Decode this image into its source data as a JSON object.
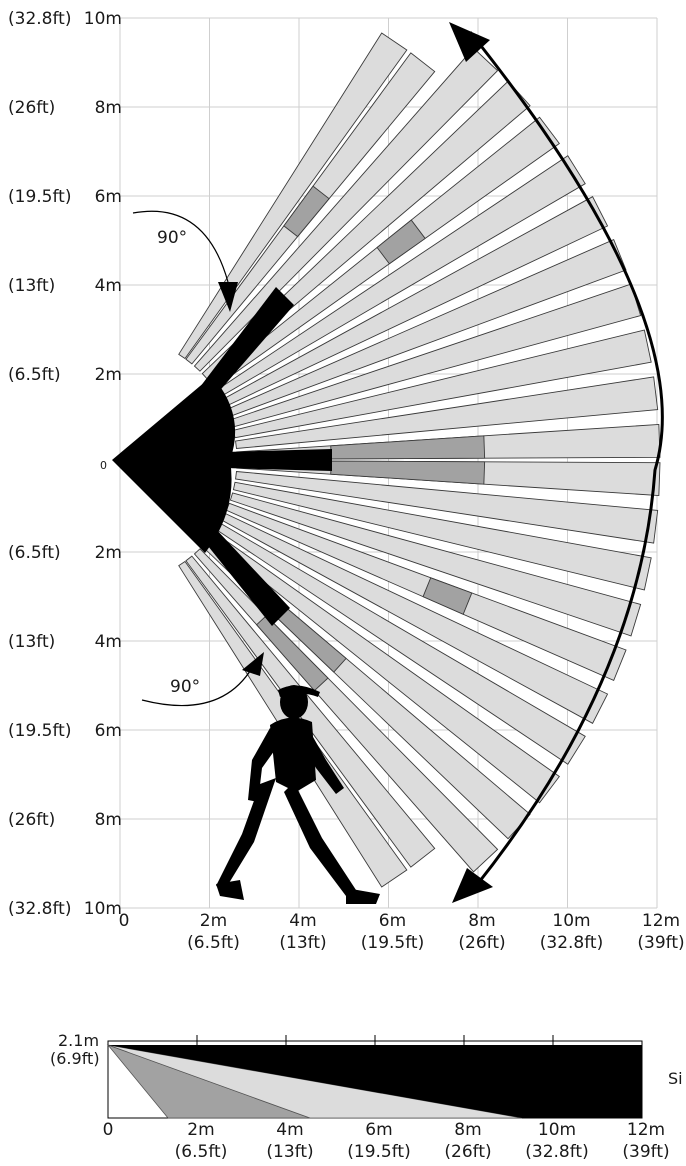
{
  "top_view": {
    "y_labels": [
      {
        "ft": "(32.8ft)",
        "m": "10m"
      },
      {
        "ft": "(26ft)",
        "m": "8m"
      },
      {
        "ft": "(19.5ft)",
        "m": "6m"
      },
      {
        "ft": "(13ft)",
        "m": "4m"
      },
      {
        "ft": "(6.5ft)",
        "m": "2m"
      },
      {
        "ft": "",
        "m": "0"
      },
      {
        "ft": "(6.5ft)",
        "m": "2m"
      },
      {
        "ft": "(13ft)",
        "m": "4m"
      },
      {
        "ft": "(19.5ft)",
        "m": "6m"
      },
      {
        "ft": "(26ft)",
        "m": "8m"
      },
      {
        "ft": "(32.8ft)",
        "m": "10m"
      }
    ],
    "x_labels": [
      {
        "m": "0",
        "ft": ""
      },
      {
        "m": "2m",
        "ft": "(6.5ft)"
      },
      {
        "m": "4m",
        "ft": "(13ft)"
      },
      {
        "m": "6m",
        "ft": "(19.5ft)"
      },
      {
        "m": "8m",
        "ft": "(26ft)"
      },
      {
        "m": "10m",
        "ft": "(32.8ft)"
      },
      {
        "m": "12m",
        "ft": "(39ft)"
      }
    ],
    "angle_upper": "90°",
    "angle_lower": "90°"
  },
  "side_view": {
    "height_m": "2.1m",
    "height_ft": "(6.9ft)",
    "x_labels": [
      {
        "m": "0",
        "ft": ""
      },
      {
        "m": "2m",
        "ft": "(6.5ft)"
      },
      {
        "m": "4m",
        "ft": "(13ft)"
      },
      {
        "m": "6m",
        "ft": "(19.5ft)"
      },
      {
        "m": "8m",
        "ft": "(26ft)"
      },
      {
        "m": "10m",
        "ft": "(32.8ft)"
      },
      {
        "m": "12m",
        "ft": "(39ft)"
      }
    ],
    "caption": "Si"
  },
  "colors": {
    "black": "#000000",
    "light_zone": "#dcdcdc",
    "mid_zone": "#a2a2a2",
    "grid": "#cfcfcf"
  }
}
